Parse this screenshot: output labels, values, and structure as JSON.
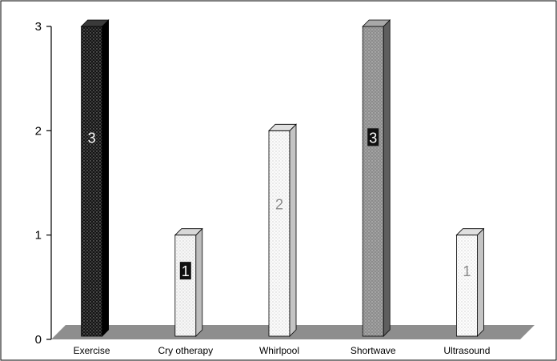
{
  "chart_data": {
    "type": "bar",
    "title": "",
    "xlabel": "",
    "ylabel": "",
    "categories": [
      "Exercise",
      "Cry otherapy",
      "Whirlpool",
      "Shortwave",
      "Ultrasound"
    ],
    "values": [
      3,
      1,
      2,
      3,
      1
    ],
    "data_labels": [
      "3",
      "1",
      "2",
      "3",
      "1"
    ],
    "ylim": [
      0,
      3
    ],
    "yticks": [
      "0",
      "1",
      "2",
      "3"
    ],
    "grid": false,
    "legend": "none",
    "bar_styles": [
      {
        "front": "#141414",
        "side": "#000000",
        "top": "#3a3a3a",
        "pattern": "dots-light",
        "label_color": "#ffffff",
        "label_bg": "none"
      },
      {
        "front": "#f7f7f7",
        "side": "#bdbdbd",
        "top": "#d8d8d8",
        "pattern": "dots-dark",
        "label_color": "#ffffff",
        "label_bg": "#111111"
      },
      {
        "front": "#fbfbfb",
        "side": "#c4c4c4",
        "top": "#e0e0e0",
        "pattern": "dots-dark",
        "label_color": "#8a8a8a",
        "label_bg": "none"
      },
      {
        "front": "#8c8c8c",
        "side": "#5e5e5e",
        "top": "#a8a8a8",
        "pattern": "dots-light",
        "label_color": "#ffffff",
        "label_bg": "#111111"
      },
      {
        "front": "#fdfdfd",
        "side": "#c4c4c4",
        "top": "#e0e0e0",
        "pattern": "dots-dark",
        "label_color": "#8a8a8a",
        "label_bg": "none"
      }
    ],
    "floor_color": "#8e8e8e",
    "axis_color": "#000000"
  }
}
